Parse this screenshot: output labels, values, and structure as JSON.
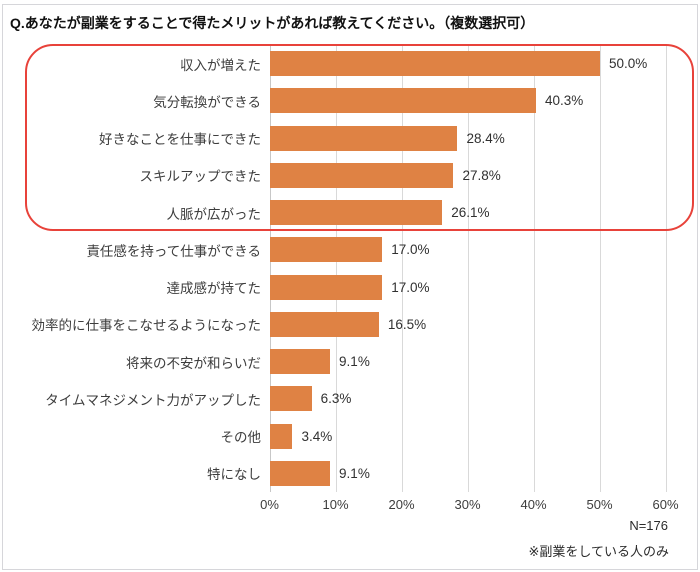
{
  "title": "Q.あなたが副業をすることで得たメリットがあれば教えてください。（複数選択可）",
  "chart_data": {
    "type": "bar",
    "orientation": "horizontal",
    "title": "Q.あなたが副業をすることで得たメリットがあれば教えてください。（複数選択可）",
    "categories": [
      "収入が増えた",
      "気分転換ができる",
      "好きなことを仕事にできた",
      "スキルアップできた",
      "人脈が広がった",
      "責任感を持って仕事ができる",
      "達成感が持てた",
      "効率的に仕事をこなせるようになった",
      "将来の不安が和らいだ",
      "タイムマネジメント力がアップした",
      "その他",
      "特になし"
    ],
    "values": [
      50.0,
      40.3,
      28.4,
      27.8,
      26.1,
      17.0,
      17.0,
      16.5,
      9.1,
      6.3,
      3.4,
      9.1
    ],
    "value_labels": [
      "50.0%",
      "40.3%",
      "28.4%",
      "27.8%",
      "26.1%",
      "17.0%",
      "17.0%",
      "16.5%",
      "9.1%",
      "6.3%",
      "3.4%",
      "9.1%"
    ],
    "xlabel": "",
    "ylabel": "",
    "xlim": [
      0,
      60
    ],
    "xtick_values": [
      0,
      10,
      20,
      30,
      40,
      50,
      60
    ],
    "xtick_labels": [
      "0%",
      "10%",
      "20%",
      "30%",
      "40%",
      "50%",
      "60%"
    ],
    "grid": "vertical",
    "legend": "none",
    "bar_color": "#df8244",
    "highlight": {
      "rows": [
        0,
        1,
        2,
        3,
        4
      ],
      "style": "rounded-rect-outline",
      "color": "#e8423a"
    }
  },
  "footer": {
    "sample_size": "N=176",
    "note": "※副業をしている人のみ"
  }
}
